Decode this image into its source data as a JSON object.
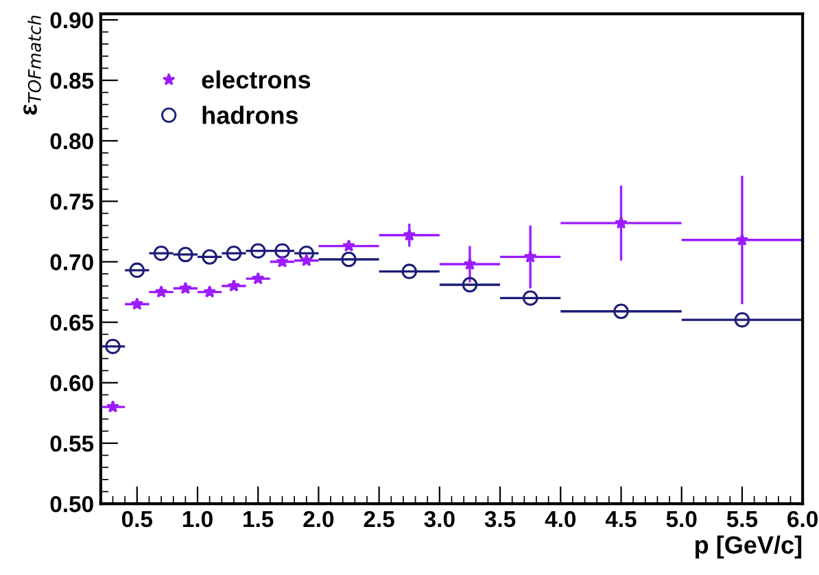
{
  "chart_data": {
    "type": "scatter",
    "xlabel": "p [GeV/c]",
    "ylabel": "ε$_{TOFmatch}$",
    "xlim": [
      0.2,
      6.0
    ],
    "ylim": [
      0.5,
      0.905
    ],
    "xticks": [
      0.5,
      {
        "value": 1.0,
        "label": "1.0"
      },
      1.5,
      {
        "value": 2.0,
        "label": "2.0"
      },
      2.5,
      {
        "value": 3.0,
        "label": "3.0"
      },
      3.5,
      {
        "value": 4.0,
        "label": "4.0"
      },
      4.5,
      {
        "value": 5.0,
        "label": "5.0"
      },
      5.5,
      {
        "value": 6.0,
        "label": "6.0"
      }
    ],
    "yticks": [
      {
        "value": 0.5,
        "label": "0.50"
      },
      0.55,
      {
        "value": 0.6,
        "label": "0.60"
      },
      0.65,
      {
        "value": 0.7,
        "label": "0.70"
      },
      0.75,
      {
        "value": 0.8,
        "label": "0.80"
      },
      0.85,
      {
        "value": 0.9,
        "label": "0.90"
      }
    ],
    "legend": "top left",
    "grid": false,
    "series": [
      {
        "name": "electrons",
        "color": "#9b1cff",
        "marker": "star",
        "x": [
          0.3,
          0.5,
          0.7,
          0.9,
          1.1,
          1.3,
          1.5,
          1.7,
          1.9,
          2.25,
          2.75,
          3.25,
          3.75,
          4.5,
          5.5
        ],
        "values": [
          0.58,
          0.665,
          0.675,
          0.678,
          0.675,
          0.68,
          0.686,
          0.7,
          0.701,
          0.713,
          0.722,
          0.698,
          0.704,
          0.732,
          0.718
        ],
        "errors": [
          null,
          null,
          null,
          null,
          null,
          null,
          null,
          null,
          null,
          null,
          0.0095,
          0.015,
          0.026,
          0.031,
          0.053
        ],
        "xerrors": [
          0.1,
          0.1,
          0.1,
          0.1,
          0.1,
          0.1,
          0.1,
          0.1,
          0.1,
          0.25,
          0.25,
          0.25,
          0.25,
          0.5,
          0.5
        ]
      },
      {
        "name": "hadrons",
        "color": "#1c1c78",
        "marker": "circle",
        "x": [
          0.3,
          0.5,
          0.7,
          0.9,
          1.1,
          1.3,
          1.5,
          1.7,
          1.9,
          2.25,
          2.75,
          3.25,
          3.75,
          4.5,
          5.5
        ],
        "values": [
          0.63,
          0.693,
          0.707,
          0.706,
          0.704,
          0.707,
          0.709,
          0.709,
          0.707,
          0.702,
          0.692,
          0.681,
          0.67,
          0.659,
          0.652
        ],
        "xerrors": [
          0.1,
          0.1,
          0.1,
          0.1,
          0.1,
          0.1,
          0.1,
          0.1,
          0.1,
          0.25,
          0.25,
          0.25,
          0.25,
          0.5,
          0.5
        ]
      }
    ]
  }
}
